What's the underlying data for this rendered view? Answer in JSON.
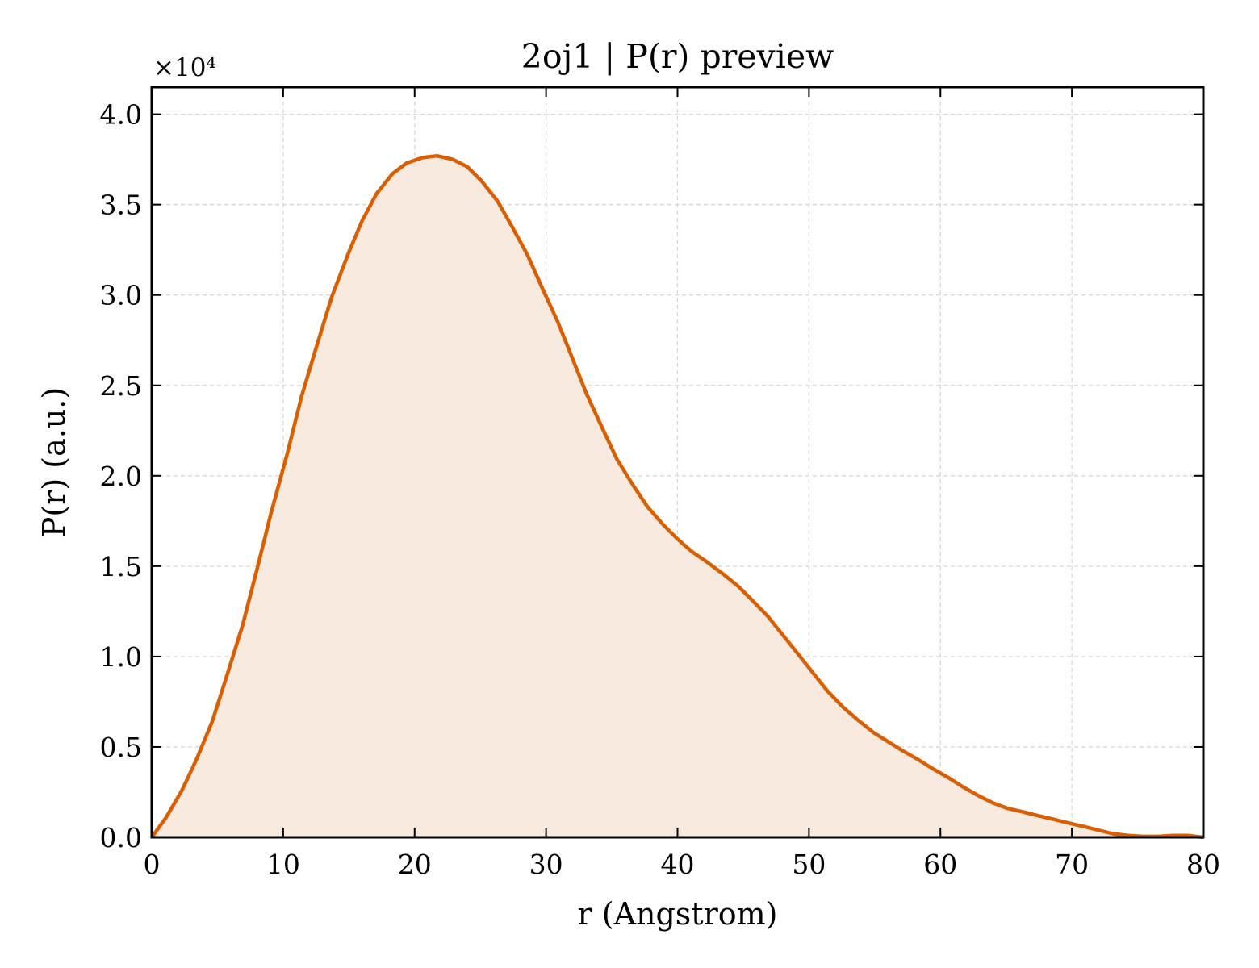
{
  "chart_data": {
    "type": "line",
    "title": "2oj1 | P(r) preview",
    "xlabel": "r (Angstrom)",
    "ylabel": "P(r) (a.u.)",
    "y_offset_label": "×10⁴",
    "xlim": [
      0,
      80
    ],
    "ylim": [
      0,
      4.15
    ],
    "xticks": [
      0,
      10,
      20,
      30,
      40,
      50,
      60,
      70,
      80
    ],
    "yticks": [
      0.0,
      0.5,
      1.0,
      1.5,
      2.0,
      2.5,
      3.0,
      3.5,
      4.0
    ],
    "grid": true,
    "series": [
      {
        "x": [
          0,
          1.1,
          2.3,
          3.4,
          4.6,
          5.7,
          6.9,
          8.0,
          9.1,
          10.3,
          11.4,
          12.6,
          13.7,
          14.9,
          16.0,
          17.1,
          18.3,
          19.4,
          20.6,
          21.7,
          22.9,
          24.0,
          25.1,
          26.3,
          27.4,
          28.6,
          29.7,
          30.9,
          32.0,
          33.1,
          34.3,
          35.4,
          36.6,
          37.7,
          38.9,
          40.0,
          41.1,
          42.3,
          43.4,
          44.6,
          45.7,
          46.9,
          48.0,
          49.1,
          50.3,
          51.4,
          52.6,
          53.7,
          54.9,
          56.0,
          57.1,
          58.3,
          59.4,
          60.6,
          61.7,
          62.9,
          64.0,
          65.1,
          66.3,
          67.4,
          68.6,
          69.7,
          70.9,
          72.0,
          73.1,
          74.3,
          75.4,
          76.6,
          77.7,
          78.9,
          80.0
        ],
        "values": [
          0.0,
          0.11,
          0.26,
          0.43,
          0.64,
          0.89,
          1.17,
          1.48,
          1.8,
          2.12,
          2.44,
          2.73,
          2.99,
          3.22,
          3.41,
          3.56,
          3.67,
          3.73,
          3.76,
          3.77,
          3.75,
          3.71,
          3.63,
          3.52,
          3.38,
          3.22,
          3.04,
          2.85,
          2.65,
          2.45,
          2.26,
          2.09,
          1.95,
          1.83,
          1.73,
          1.65,
          1.58,
          1.52,
          1.46,
          1.39,
          1.31,
          1.22,
          1.12,
          1.02,
          0.91,
          0.81,
          0.72,
          0.65,
          0.58,
          0.53,
          0.48,
          0.43,
          0.38,
          0.33,
          0.28,
          0.23,
          0.19,
          0.16,
          0.14,
          0.12,
          0.1,
          0.08,
          0.06,
          0.04,
          0.02,
          0.01,
          0.005,
          0.005,
          0.01,
          0.01,
          0.0
        ]
      }
    ],
    "colors": {
      "line": "#d95f02",
      "fill": "#f9eadf"
    }
  }
}
